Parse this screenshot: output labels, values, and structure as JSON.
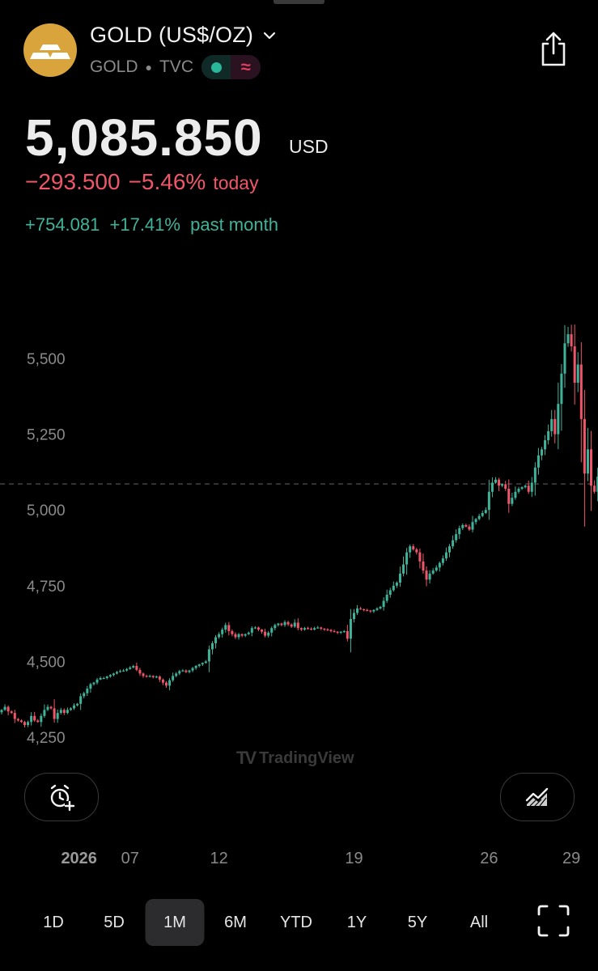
{
  "header": {
    "title": "GOLD (US$/OZ)",
    "symbol": "GOLD",
    "exchange": "TVC",
    "logo_color": "#d9a43c"
  },
  "quote": {
    "price": "5,085.850",
    "currency": "USD",
    "change_today": "−293.500",
    "change_today_pct": "−5.46%",
    "today_label": "today",
    "change_month": "+754.081",
    "change_month_pct": "+17.41%",
    "month_label": "past month",
    "down_color": "#f0566a",
    "up_color": "#3fb39a"
  },
  "chart_data": {
    "type": "candlestick",
    "y_ticks": [
      "5,500",
      "5,250",
      "5,000",
      "4,750",
      "4,500",
      "4,250"
    ],
    "y_tick_values": [
      5500,
      5250,
      5000,
      4750,
      4500,
      4250
    ],
    "ylim": [
      4220,
      5600
    ],
    "current_price_line": 5085.85,
    "x_ticks": [
      {
        "label": "2026",
        "index": 10
      },
      {
        "label": "07",
        "index": 39
      },
      {
        "label": "12",
        "index": 66
      },
      {
        "label": "19",
        "index": 107
      },
      {
        "label": "26",
        "index": 148
      },
      {
        "label": "29",
        "index": 173
      }
    ],
    "closes": [
      4340,
      4350,
      4335,
      4330,
      4310,
      4305,
      4300,
      4290,
      4300,
      4320,
      4305,
      4300,
      4320,
      4340,
      4350,
      4345,
      4310,
      4330,
      4340,
      4330,
      4340,
      4345,
      4355,
      4360,
      4385,
      4395,
      4410,
      4425,
      4430,
      4440,
      4445,
      4445,
      4450,
      4455,
      4460,
      4465,
      4468,
      4470,
      4475,
      4480,
      4485,
      4472,
      4460,
      4452,
      4450,
      4452,
      4448,
      4450,
      4440,
      4430,
      4420,
      4438,
      4452,
      4460,
      4468,
      4470,
      4465,
      4470,
      4478,
      4485,
      4490,
      4495,
      4500,
      4540,
      4560,
      4580,
      4590,
      4605,
      4620,
      4600,
      4590,
      4580,
      4590,
      4585,
      4590,
      4595,
      4610,
      4612,
      4605,
      4598,
      4585,
      4595,
      4610,
      4620,
      4625,
      4620,
      4630,
      4622,
      4615,
      4628,
      4610,
      4605,
      4610,
      4608,
      4605,
      4610,
      4612,
      4608,
      4606,
      4604,
      4600,
      4598,
      4595,
      4598,
      4600,
      4575,
      4640,
      4660,
      4675,
      4672,
      4670,
      4668,
      4665,
      4670,
      4675,
      4680,
      4700,
      4720,
      4735,
      4750,
      4760,
      4790,
      4820,
      4860,
      4880,
      4870,
      4860,
      4830,
      4800,
      4770,
      4790,
      4800,
      4810,
      4825,
      4840,
      4860,
      4880,
      4900,
      4920,
      4940,
      4950,
      4945,
      4935,
      4960,
      4970,
      4980,
      4990,
      5000,
      5060,
      5090,
      5100,
      5080,
      5085,
      5070,
      5020,
      5040,
      5060,
      5070,
      5075,
      5080,
      5060,
      5090,
      5140,
      5180,
      5200,
      5230,
      5260,
      5300,
      5250,
      5350,
      5450,
      5550,
      5580,
      5540,
      5420,
      5480,
      5300,
      5120,
      5200,
      5080,
      5060,
      5110,
      5086
    ]
  },
  "toolbar": {
    "alarm_icon": "alarm-add-icon",
    "indicator_icon": "chart-indicator-icon"
  },
  "watermark": {
    "text": "TradingView",
    "logo": "TV"
  },
  "ranges": [
    {
      "label": "1D",
      "active": false
    },
    {
      "label": "5D",
      "active": false
    },
    {
      "label": "1M",
      "active": true
    },
    {
      "label": "6M",
      "active": false
    },
    {
      "label": "YTD",
      "active": false
    },
    {
      "label": "1Y",
      "active": false
    },
    {
      "label": "5Y",
      "active": false
    },
    {
      "label": "All",
      "active": false
    }
  ]
}
